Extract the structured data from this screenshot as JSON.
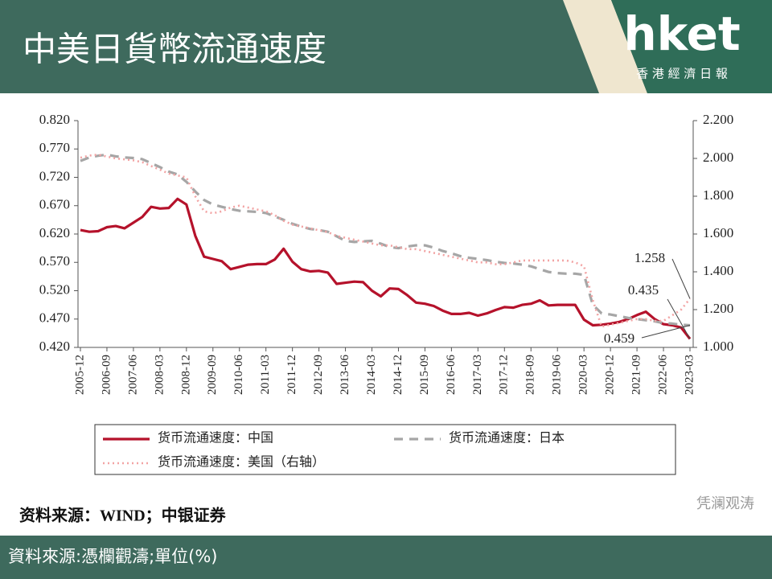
{
  "header": {
    "title": "中美日貨幣流通速度",
    "logo": "hket",
    "logo_subtitle": "香 港 經 濟 日 報"
  },
  "chart_data": {
    "type": "line",
    "categories": [
      "2005-12",
      null,
      null,
      "2006-09",
      null,
      null,
      "2007-06",
      null,
      null,
      "2008-03",
      null,
      null,
      "2008-12",
      null,
      null,
      "2009-09",
      null,
      null,
      "2010-06",
      null,
      null,
      "2011-03",
      null,
      null,
      "2011-12",
      null,
      null,
      "2012-09",
      null,
      null,
      "2013-06",
      null,
      null,
      "2014-03",
      null,
      null,
      "2014-12",
      null,
      null,
      "2015-09",
      null,
      null,
      "2016-06",
      null,
      null,
      "2017-03",
      null,
      null,
      "2017-12",
      null,
      null,
      "2018-09",
      null,
      null,
      "2019-06",
      null,
      null,
      "2020-03",
      null,
      null,
      "2020-12",
      null,
      null,
      "2021-09",
      null,
      null,
      "2022-06",
      null,
      null,
      "2023-03"
    ],
    "series": [
      {
        "name": "货币流通速度：中国",
        "color": "#b5122b",
        "style": "solid",
        "values": [
          0.627,
          0.624,
          0.625,
          0.632,
          0.634,
          0.63,
          0.64,
          0.65,
          0.668,
          0.665,
          0.666,
          0.682,
          0.672,
          0.617,
          0.58,
          0.576,
          0.572,
          0.558,
          0.562,
          0.566,
          0.567,
          0.567,
          0.575,
          0.594,
          0.571,
          0.558,
          0.554,
          0.555,
          0.552,
          0.532,
          0.534,
          0.536,
          0.535,
          0.52,
          0.51,
          0.524,
          0.523,
          0.512,
          0.499,
          0.497,
          0.493,
          0.485,
          0.479,
          0.479,
          0.481,
          0.476,
          0.48,
          0.486,
          0.491,
          0.49,
          0.495,
          0.497,
          0.503,
          0.494,
          0.495,
          0.495,
          0.495,
          0.469,
          0.459,
          0.46,
          0.462,
          0.465,
          0.47,
          0.477,
          0.483,
          0.47,
          0.461,
          0.459,
          0.455,
          0.435
        ]
      },
      {
        "name": "货币流通速度：日本",
        "color": "#a6a6a6",
        "style": "dashed",
        "values": [
          0.749,
          0.755,
          0.758,
          0.76,
          0.757,
          0.755,
          0.754,
          0.752,
          0.745,
          0.738,
          0.73,
          0.725,
          0.712,
          0.695,
          0.68,
          0.672,
          0.668,
          0.664,
          0.661,
          0.66,
          0.659,
          0.657,
          0.651,
          0.645,
          0.638,
          0.633,
          0.629,
          0.627,
          0.624,
          0.616,
          0.608,
          0.606,
          0.607,
          0.608,
          0.603,
          0.597,
          0.595,
          0.598,
          0.6,
          0.6,
          0.596,
          0.59,
          0.586,
          0.581,
          0.578,
          0.576,
          0.574,
          0.571,
          0.569,
          0.568,
          0.566,
          0.563,
          0.558,
          0.553,
          0.551,
          0.55,
          0.55,
          0.548,
          0.495,
          0.48,
          0.478,
          0.475,
          0.472,
          0.47,
          0.468,
          0.466,
          0.463,
          0.462,
          0.46,
          0.459
        ]
      },
      {
        "name": "货币流通速度：美国（右轴）",
        "color": "#f2a3a3",
        "style": "dotted",
        "axis": "y2",
        "values": [
          2.004,
          2.015,
          2.02,
          2.01,
          2.0,
          1.995,
          1.99,
          1.98,
          1.96,
          1.94,
          1.92,
          1.91,
          1.9,
          1.8,
          1.72,
          1.71,
          1.72,
          1.74,
          1.75,
          1.74,
          1.73,
          1.72,
          1.7,
          1.67,
          1.65,
          1.64,
          1.63,
          1.62,
          1.61,
          1.59,
          1.58,
          1.57,
          1.56,
          1.55,
          1.54,
          1.54,
          1.53,
          1.52,
          1.52,
          1.51,
          1.5,
          1.49,
          1.48,
          1.47,
          1.46,
          1.45,
          1.45,
          1.44,
          1.44,
          1.45,
          1.46,
          1.46,
          1.46,
          1.46,
          1.46,
          1.46,
          1.45,
          1.43,
          1.25,
          1.11,
          1.12,
          1.13,
          1.14,
          1.15,
          1.15,
          1.14,
          1.14,
          1.17,
          1.2,
          1.258
        ]
      }
    ],
    "ylim": [
      0.42,
      0.82
    ],
    "yticks": [
      {
        "value": 0.42,
        "label": "0.420"
      },
      {
        "value": 0.47,
        "label": "0.470"
      },
      {
        "value": 0.52,
        "label": "0.520"
      },
      {
        "value": 0.57,
        "label": "0.570"
      },
      {
        "value": 0.62,
        "label": "0.620"
      },
      {
        "value": 0.67,
        "label": "0.670"
      },
      {
        "value": 0.72,
        "label": "0.720"
      },
      {
        "value": 0.77,
        "label": "0.770"
      },
      {
        "value": 0.82,
        "label": "0.820"
      }
    ],
    "y2lim": [
      1.0,
      2.2
    ],
    "y2ticks": [
      {
        "value": 1.0,
        "label": "1.000"
      },
      {
        "value": 1.2,
        "label": "1.200"
      },
      {
        "value": 1.4,
        "label": "1.400"
      },
      {
        "value": 1.6,
        "label": "1.600"
      },
      {
        "value": 1.8,
        "label": "1.800"
      },
      {
        "value": 2.0,
        "label": "2.000"
      },
      {
        "value": 2.2,
        "label": "2.200"
      }
    ],
    "annotations": [
      "1.258",
      "0.435",
      "0.459"
    ],
    "source": "资料来源：WIND；中银证券",
    "watermark": "凭澜观涛"
  },
  "footer": {
    "text": "資料來源:憑欄觀濤;單位(%)"
  }
}
